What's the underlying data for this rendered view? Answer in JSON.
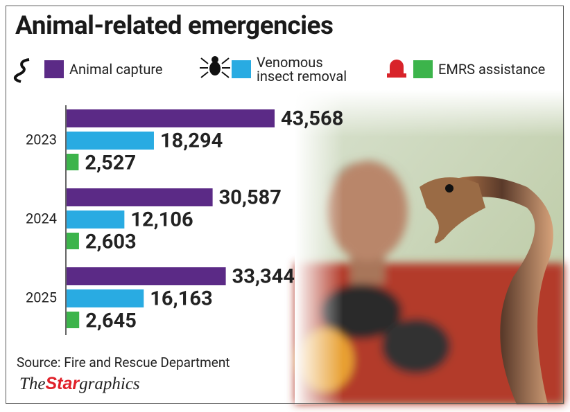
{
  "chart_data": {
    "type": "bar",
    "orientation": "horizontal",
    "title": "Animal-related emergencies",
    "categories": [
      "2023",
      "2024",
      "2025"
    ],
    "series": [
      {
        "name": "Animal capture",
        "color": "#5b2a86",
        "values": [
          43568,
          30587,
          33344
        ],
        "value_labels": [
          "43,568",
          "30,587",
          "33,344"
        ]
      },
      {
        "name": "Venomous insect removal",
        "color": "#29abe2",
        "values": [
          18294,
          12106,
          16163
        ],
        "value_labels": [
          "18,294",
          "12,106",
          "16,163"
        ]
      },
      {
        "name": "EMRS assistance",
        "color": "#3cb44b",
        "values": [
          2527,
          2603,
          2645
        ],
        "value_labels": [
          "2,527",
          "2,603",
          "2,645"
        ]
      }
    ],
    "source": "Source: Fire and Rescue Department",
    "credit": [
      "The",
      "Star",
      "graphics"
    ]
  }
}
